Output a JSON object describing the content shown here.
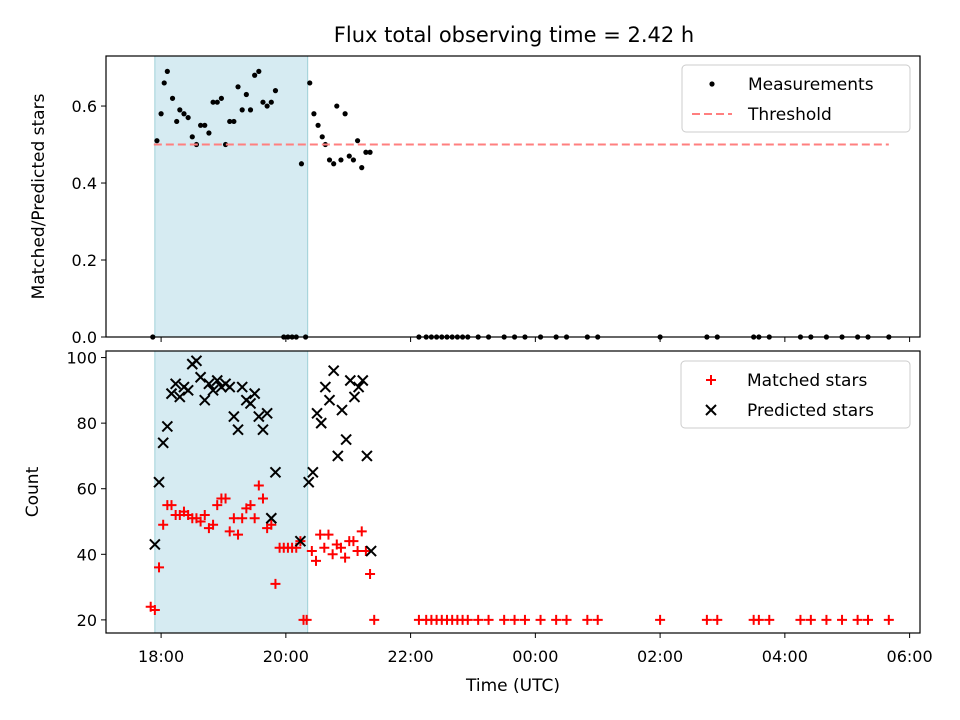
{
  "chart_data": [
    {
      "type": "scatter",
      "title": "Flux total observing time = 2.42 h",
      "xlabel": "",
      "ylabel": "Matched/Predicted stars",
      "xlim": [
        "17:07",
        "06:10"
      ],
      "ylim": [
        0,
        0.73
      ],
      "yticks": [
        0.0,
        0.2,
        0.4,
        0.6
      ],
      "ytick_labels": [
        "0.0",
        "0.2",
        "0.4",
        "0.6"
      ],
      "highlight_span": [
        "17:54",
        "20:21"
      ],
      "legend_position": "upper right",
      "series": [
        {
          "name": "Measurements",
          "marker": "dot",
          "color": "#000000",
          "points": [
            [
              "17:52",
              0.0
            ],
            [
              "17:56",
              0.51
            ],
            [
              "18:00",
              0.58
            ],
            [
              "18:03",
              0.66
            ],
            [
              "18:06",
              0.69
            ],
            [
              "18:11",
              0.62
            ],
            [
              "18:15",
              0.56
            ],
            [
              "18:18",
              0.59
            ],
            [
              "18:22",
              0.58
            ],
            [
              "18:26",
              0.57
            ],
            [
              "18:30",
              0.52
            ],
            [
              "18:34",
              0.5
            ],
            [
              "18:38",
              0.55
            ],
            [
              "18:42",
              0.55
            ],
            [
              "18:46",
              0.53
            ],
            [
              "18:50",
              0.61
            ],
            [
              "18:54",
              0.61
            ],
            [
              "18:58",
              0.62
            ],
            [
              "19:02",
              0.5
            ],
            [
              "19:06",
              0.56
            ],
            [
              "19:10",
              0.56
            ],
            [
              "19:14",
              0.65
            ],
            [
              "19:18",
              0.59
            ],
            [
              "19:22",
              0.63
            ],
            [
              "19:26",
              0.59
            ],
            [
              "19:30",
              0.68
            ],
            [
              "19:34",
              0.69
            ],
            [
              "19:38",
              0.61
            ],
            [
              "19:42",
              0.6
            ],
            [
              "19:46",
              0.61
            ],
            [
              "19:50",
              0.64
            ],
            [
              "19:58",
              0.0
            ],
            [
              "20:02",
              0.0
            ],
            [
              "20:06",
              0.0
            ],
            [
              "20:10",
              0.0
            ],
            [
              "20:15",
              0.45
            ],
            [
              "20:19",
              0.0
            ],
            [
              "20:23",
              0.66
            ],
            [
              "20:27",
              0.58
            ],
            [
              "20:31",
              0.55
            ],
            [
              "20:35",
              0.52
            ],
            [
              "20:38",
              0.5
            ],
            [
              "20:42",
              0.46
            ],
            [
              "20:46",
              0.45
            ],
            [
              "20:49",
              0.6
            ],
            [
              "20:53",
              0.46
            ],
            [
              "20:57",
              0.58
            ],
            [
              "21:01",
              0.47
            ],
            [
              "21:05",
              0.46
            ],
            [
              "21:09",
              0.51
            ],
            [
              "21:13",
              0.44
            ],
            [
              "21:17",
              0.48
            ],
            [
              "21:21",
              0.48
            ],
            [
              "22:08",
              0.0
            ],
            [
              "22:15",
              0.0
            ],
            [
              "22:20",
              0.0
            ],
            [
              "22:25",
              0.0
            ],
            [
              "22:30",
              0.0
            ],
            [
              "22:35",
              0.0
            ],
            [
              "22:40",
              0.0
            ],
            [
              "22:45",
              0.0
            ],
            [
              "22:50",
              0.0
            ],
            [
              "22:55",
              0.0
            ],
            [
              "23:05",
              0.0
            ],
            [
              "23:15",
              0.0
            ],
            [
              "23:30",
              0.0
            ],
            [
              "23:40",
              0.0
            ],
            [
              "23:50",
              0.0
            ],
            [
              "00:05",
              0.0
            ],
            [
              "00:20",
              0.0
            ],
            [
              "00:30",
              0.0
            ],
            [
              "00:50",
              0.0
            ],
            [
              "01:00",
              0.0
            ],
            [
              "02:00",
              0.0
            ],
            [
              "02:45",
              0.0
            ],
            [
              "02:55",
              0.0
            ],
            [
              "03:30",
              0.0
            ],
            [
              "03:35",
              0.0
            ],
            [
              "03:45",
              0.0
            ],
            [
              "04:15",
              0.0
            ],
            [
              "04:25",
              0.0
            ],
            [
              "04:40",
              0.0
            ],
            [
              "04:55",
              0.0
            ],
            [
              "05:10",
              0.0
            ],
            [
              "05:20",
              0.0
            ],
            [
              "05:40",
              0.0
            ]
          ]
        },
        {
          "name": "Threshold",
          "marker": "dashed-line",
          "color": "#ff7f7f",
          "points": [
            [
              "17:53",
              0.5
            ],
            [
              "05:40",
              0.5
            ]
          ]
        }
      ]
    },
    {
      "type": "scatter",
      "title": "",
      "xlabel": "Time (UTC)",
      "ylabel": "Count",
      "xlim": [
        "17:07",
        "06:10"
      ],
      "ylim": [
        16,
        102
      ],
      "yticks": [
        20,
        40,
        60,
        80,
        100
      ],
      "ytick_labels": [
        "20",
        "40",
        "60",
        "80",
        "100"
      ],
      "xticks": [
        "18:00",
        "20:00",
        "22:00",
        "00:00",
        "02:00",
        "04:00",
        "06:00"
      ],
      "xtick_labels": [
        "18:00",
        "20:00",
        "22:00",
        "00:00",
        "02:00",
        "04:00",
        "06:00"
      ],
      "highlight_span": [
        "17:54",
        "20:21"
      ],
      "legend_position": "upper right",
      "series": [
        {
          "name": "Matched stars",
          "marker": "plus",
          "color": "#ff0000",
          "points": [
            [
              "17:50",
              24
            ],
            [
              "17:54",
              23
            ],
            [
              "17:58",
              36
            ],
            [
              "18:02",
              49
            ],
            [
              "18:06",
              55
            ],
            [
              "18:10",
              55
            ],
            [
              "18:14",
              52
            ],
            [
              "18:18",
              52
            ],
            [
              "18:22",
              53
            ],
            [
              "18:26",
              52
            ],
            [
              "18:30",
              51
            ],
            [
              "18:34",
              51
            ],
            [
              "18:38",
              50
            ],
            [
              "18:42",
              52
            ],
            [
              "18:46",
              48
            ],
            [
              "18:50",
              49
            ],
            [
              "18:54",
              55
            ],
            [
              "18:58",
              57
            ],
            [
              "19:02",
              57
            ],
            [
              "19:06",
              47
            ],
            [
              "19:10",
              51
            ],
            [
              "19:14",
              46
            ],
            [
              "19:18",
              51
            ],
            [
              "19:22",
              54
            ],
            [
              "19:26",
              55
            ],
            [
              "19:30",
              51
            ],
            [
              "19:34",
              61
            ],
            [
              "19:38",
              57
            ],
            [
              "19:42",
              48
            ],
            [
              "19:46",
              49
            ],
            [
              "19:50",
              31
            ],
            [
              "19:54",
              42
            ],
            [
              "19:58",
              42
            ],
            [
              "20:02",
              42
            ],
            [
              "20:06",
              42
            ],
            [
              "20:10",
              42
            ],
            [
              "20:14",
              44
            ],
            [
              "20:17",
              20
            ],
            [
              "20:20",
              20
            ],
            [
              "20:25",
              41
            ],
            [
              "20:29",
              38
            ],
            [
              "20:33",
              46
            ],
            [
              "20:37",
              42
            ],
            [
              "20:41",
              46
            ],
            [
              "20:45",
              40
            ],
            [
              "20:49",
              43
            ],
            [
              "20:53",
              42
            ],
            [
              "20:57",
              39
            ],
            [
              "21:01",
              44
            ],
            [
              "21:05",
              44
            ],
            [
              "21:09",
              41
            ],
            [
              "21:13",
              47
            ],
            [
              "21:17",
              41
            ],
            [
              "21:21",
              34
            ],
            [
              "21:25",
              20
            ],
            [
              "22:08",
              20
            ],
            [
              "22:15",
              20
            ],
            [
              "22:20",
              20
            ],
            [
              "22:25",
              20
            ],
            [
              "22:30",
              20
            ],
            [
              "22:35",
              20
            ],
            [
              "22:40",
              20
            ],
            [
              "22:45",
              20
            ],
            [
              "22:50",
              20
            ],
            [
              "22:55",
              20
            ],
            [
              "23:05",
              20
            ],
            [
              "23:15",
              20
            ],
            [
              "23:30",
              20
            ],
            [
              "23:40",
              20
            ],
            [
              "23:50",
              20
            ],
            [
              "00:05",
              20
            ],
            [
              "00:20",
              20
            ],
            [
              "00:30",
              20
            ],
            [
              "00:50",
              20
            ],
            [
              "01:00",
              20
            ],
            [
              "02:00",
              20
            ],
            [
              "02:45",
              20
            ],
            [
              "02:55",
              20
            ],
            [
              "03:30",
              20
            ],
            [
              "03:35",
              20
            ],
            [
              "03:45",
              20
            ],
            [
              "04:15",
              20
            ],
            [
              "04:25",
              20
            ],
            [
              "04:40",
              20
            ],
            [
              "04:55",
              20
            ],
            [
              "05:10",
              20
            ],
            [
              "05:20",
              20
            ],
            [
              "05:40",
              20
            ]
          ]
        },
        {
          "name": "Predicted stars",
          "marker": "x",
          "color": "#000000",
          "points": [
            [
              "17:54",
              43
            ],
            [
              "17:58",
              62
            ],
            [
              "18:02",
              74
            ],
            [
              "18:06",
              79
            ],
            [
              "18:10",
              89
            ],
            [
              "18:14",
              92
            ],
            [
              "18:18",
              88
            ],
            [
              "18:22",
              91
            ],
            [
              "18:26",
              90
            ],
            [
              "18:30",
              98
            ],
            [
              "18:34",
              99
            ],
            [
              "18:38",
              94
            ],
            [
              "18:42",
              87
            ],
            [
              "18:46",
              92
            ],
            [
              "18:50",
              90
            ],
            [
              "18:54",
              93
            ],
            [
              "18:58",
              91
            ],
            [
              "19:02",
              92
            ],
            [
              "19:06",
              91
            ],
            [
              "19:10",
              82
            ],
            [
              "19:14",
              78
            ],
            [
              "19:18",
              91
            ],
            [
              "19:22",
              87
            ],
            [
              "19:26",
              86
            ],
            [
              "19:30",
              89
            ],
            [
              "19:34",
              82
            ],
            [
              "19:38",
              78
            ],
            [
              "19:42",
              83
            ],
            [
              "19:46",
              51
            ],
            [
              "19:50",
              65
            ],
            [
              "20:14",
              44
            ],
            [
              "20:22",
              62
            ],
            [
              "20:26",
              65
            ],
            [
              "20:30",
              83
            ],
            [
              "20:34",
              80
            ],
            [
              "20:38",
              91
            ],
            [
              "20:42",
              87
            ],
            [
              "20:46",
              96
            ],
            [
              "20:50",
              70
            ],
            [
              "20:54",
              84
            ],
            [
              "20:58",
              75
            ],
            [
              "21:02",
              93
            ],
            [
              "21:06",
              88
            ],
            [
              "21:10",
              91
            ],
            [
              "21:14",
              93
            ],
            [
              "21:18",
              70
            ],
            [
              "21:22",
              41
            ]
          ]
        }
      ]
    }
  ]
}
